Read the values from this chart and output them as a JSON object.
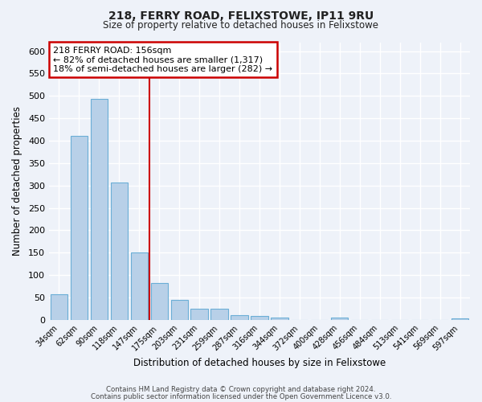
{
  "title": "218, FERRY ROAD, FELIXSTOWE, IP11 9RU",
  "subtitle": "Size of property relative to detached houses in Felixstowe",
  "xlabel": "Distribution of detached houses by size in Felixstowe",
  "ylabel": "Number of detached properties",
  "bar_color": "#b8d0e8",
  "bar_edge_color": "#6baed6",
  "background_color": "#eef2f9",
  "grid_color": "#ffffff",
  "categories": [
    "34sqm",
    "62sqm",
    "90sqm",
    "118sqm",
    "147sqm",
    "175sqm",
    "203sqm",
    "231sqm",
    "259sqm",
    "287sqm",
    "316sqm",
    "344sqm",
    "372sqm",
    "400sqm",
    "428sqm",
    "456sqm",
    "484sqm",
    "513sqm",
    "541sqm",
    "569sqm",
    "597sqm"
  ],
  "values": [
    57,
    410,
    493,
    307,
    150,
    82,
    45,
    25,
    25,
    10,
    8,
    5,
    0,
    0,
    5,
    0,
    0,
    0,
    0,
    0,
    4
  ],
  "ylim": [
    0,
    620
  ],
  "yticks": [
    0,
    50,
    100,
    150,
    200,
    250,
    300,
    350,
    400,
    450,
    500,
    550,
    600
  ],
  "vline_x": 4.5,
  "vline_color": "#cc0000",
  "annotation_title": "218 FERRY ROAD: 156sqm",
  "annotation_line1": "← 82% of detached houses are smaller (1,317)",
  "annotation_line2": "18% of semi-detached houses are larger (282) →",
  "annotation_box_color": "#ffffff",
  "annotation_box_edge_color": "#cc0000",
  "footer_line1": "Contains HM Land Registry data © Crown copyright and database right 2024.",
  "footer_line2": "Contains public sector information licensed under the Open Government Licence v3.0."
}
